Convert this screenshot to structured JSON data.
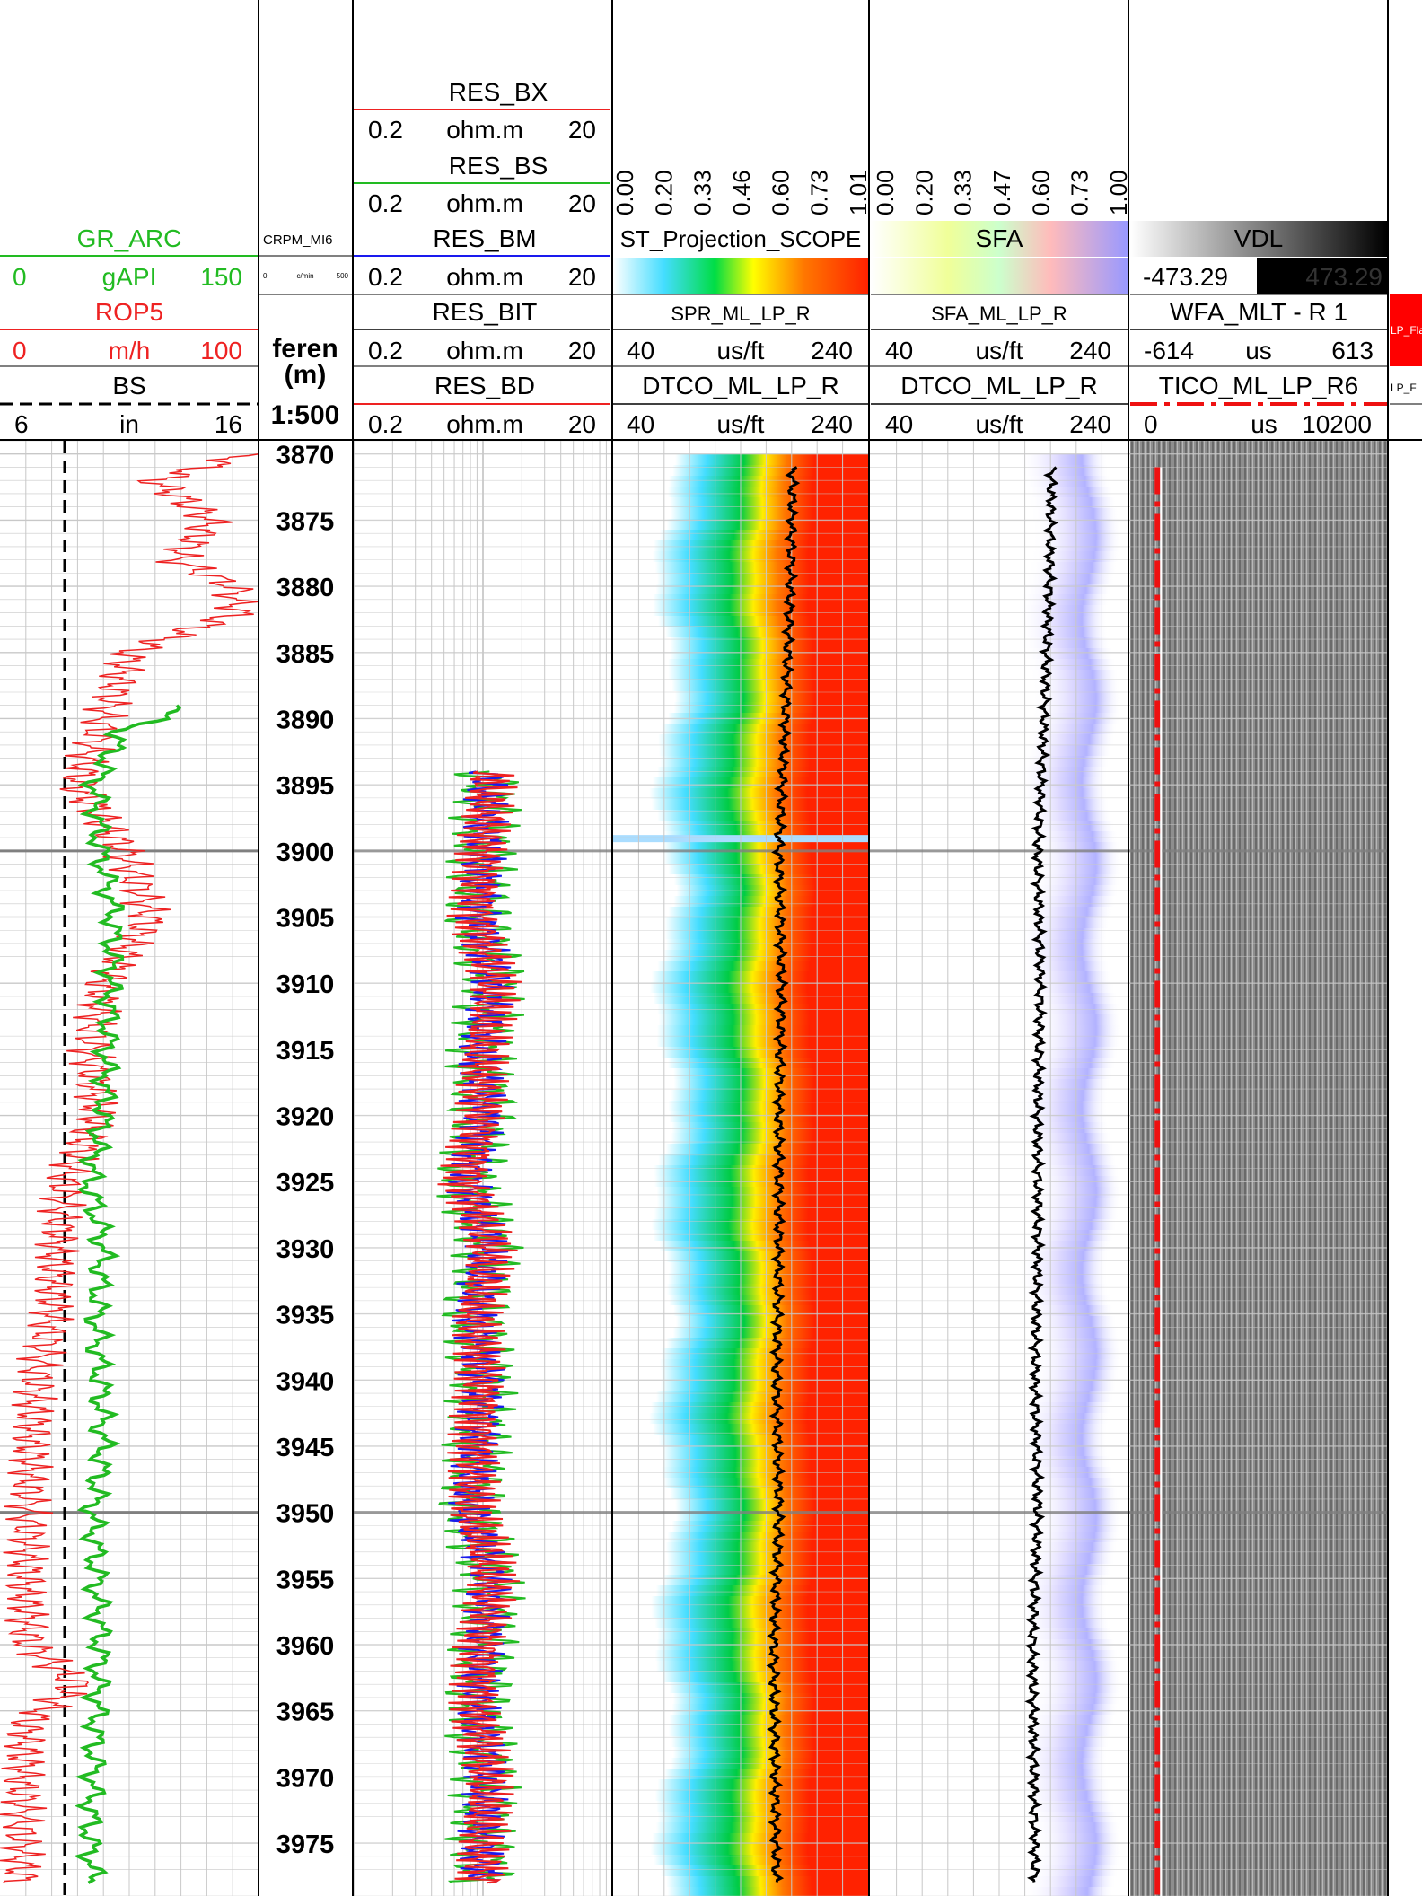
{
  "colors": {
    "gr": "#22bb22",
    "rop": "#ee2222",
    "bs": "#000000",
    "res_bx": "#ee2222",
    "res_bs": "#22bb22",
    "res_bm": "#1a1aee",
    "res_bit": "#000000",
    "res_bd": "#ee2222",
    "dtco": "#000000",
    "tico": "#ee1111",
    "grid": "#c8c8c8",
    "major_grid": "#808080"
  },
  "tracks": {
    "gr": {
      "name": "GR_ARC",
      "min": "0",
      "unit": "gAPI",
      "max": "150",
      "rop_name": "ROP5",
      "rop_min": "0",
      "rop_unit": "m/h",
      "rop_max": "100",
      "bs_name": "BS",
      "bs_min": "6",
      "bs_unit": "in",
      "bs_max": "16"
    },
    "depth": {
      "crpm_name": "CRPM_MI6",
      "crpm_min": "0",
      "crpm_unit": "c/min",
      "crpm_max": "500",
      "ref_label": "feren",
      "unit_label": "(m)",
      "scale_label": "1:500"
    },
    "res": {
      "bx_name": "RES_BX",
      "bx_min": "0.2",
      "bx_unit": "ohm.m",
      "bx_max": "20",
      "bs_name": "RES_BS",
      "bs_min": "0.2",
      "bs_unit": "ohm.m",
      "bs_max": "20",
      "bm_name": "RES_BM",
      "bm_min": "0.2",
      "bm_unit": "ohm.m",
      "bm_max": "20",
      "bit_name": "RES_BIT",
      "bit_min": "0.2",
      "bit_unit": "ohm.m",
      "bit_max": "20",
      "bd_name": "RES_BD",
      "bd_min": "0.2",
      "bd_unit": "ohm.m",
      "bd_max": "20"
    },
    "spr": {
      "scale_ticks": [
        "0.00",
        "0.20",
        "0.33",
        "0.46",
        "0.60",
        "0.73",
        "1.01"
      ],
      "name": "ST_Projection_SCOPE",
      "image_name": "SPR_ML_LP_R",
      "curve_min": "40",
      "curve_unit": "us/ft",
      "curve_max": "240",
      "curve_name": "DTCO_ML_LP_R",
      "curve2_min": "40",
      "curve2_unit": "us/ft",
      "curve2_max": "240"
    },
    "sfa": {
      "scale_ticks": [
        "0.00",
        "0.20",
        "0.33",
        "0.47",
        "0.60",
        "0.73",
        "1.00"
      ],
      "name": "SFA",
      "image_name": "SFA_ML_LP_R",
      "curve_min": "40",
      "curve_unit": "us/ft",
      "curve_max": "240",
      "curve_name": "DTCO_ML_LP_R",
      "curve2_min": "40",
      "curve2_unit": "us/ft",
      "curve2_max": "240"
    },
    "vdl": {
      "name": "VDL",
      "amp_min": "-473.29",
      "amp_max": "473.29",
      "wfa_name": "WFA_MLT - R 1",
      "time_min": "-614",
      "time_unit": "us",
      "time_max": "613",
      "tico_name": "TICO_ML_LP_R6",
      "tico_min": "0",
      "tico_unit": "us",
      "tico_max": "10200"
    },
    "flag": {
      "name1": "LP_Fla",
      "name2": "LP_F"
    }
  },
  "chart_data": {
    "type": "line",
    "title": "",
    "xlabel": "",
    "ylabel": "(m)",
    "depth_range": [
      3869,
      3979
    ],
    "depth_ticks": [
      3870,
      3875,
      3880,
      3885,
      3890,
      3895,
      3900,
      3905,
      3910,
      3915,
      3920,
      3925,
      3930,
      3935,
      3940,
      3945,
      3950,
      3955,
      3960,
      3965,
      3970,
      3975
    ],
    "series": [
      {
        "name": "GR_ARC",
        "unit": "gAPI",
        "range": [
          0,
          150
        ],
        "start_depth": 3889,
        "depth": [
          3889,
          3891,
          3895,
          3900,
          3905,
          3910,
          3915,
          3920,
          3925,
          3930,
          3935,
          3940,
          3945,
          3950,
          3955,
          3960,
          3965,
          3970,
          3975,
          3978
        ],
        "values": [
          110,
          70,
          55,
          58,
          66,
          64,
          62,
          60,
          52,
          60,
          56,
          58,
          60,
          54,
          56,
          58,
          56,
          54,
          52,
          54
        ]
      },
      {
        "name": "ROP5",
        "unit": "m/h",
        "range": [
          0,
          100
        ],
        "depth": [
          3870,
          3872,
          3875,
          3878,
          3880,
          3882,
          3885,
          3890,
          3895,
          3900,
          3905,
          3910,
          3915,
          3920,
          3925,
          3930,
          3935,
          3940,
          3945,
          3950,
          3955,
          3960,
          3963,
          3966,
          3970,
          3978
        ],
        "values": [
          97,
          60,
          82,
          68,
          90,
          92,
          50,
          40,
          30,
          48,
          58,
          40,
          35,
          38,
          25,
          22,
          20,
          14,
          12,
          11,
          10,
          11,
          30,
          10,
          9,
          8
        ]
      },
      {
        "name": "BS",
        "unit": "in",
        "range": [
          6,
          16
        ],
        "depth": [
          3869,
          3979
        ],
        "values": [
          8.5,
          8.5
        ]
      },
      {
        "name": "RES_BD",
        "unit": "ohm.m",
        "range": [
          0.2,
          20
        ],
        "start_depth": 3894,
        "depth": [
          3894,
          3900,
          3905,
          3910,
          3915,
          3920,
          3925,
          3930,
          3935,
          3940,
          3945,
          3950,
          3955,
          3960,
          3965,
          3970,
          3975,
          3978
        ],
        "values": [
          2.2,
          2.0,
          1.8,
          2.4,
          1.9,
          2.0,
          1.5,
          2.2,
          1.7,
          2.0,
          1.8,
          1.6,
          2.3,
          2.0,
          1.8,
          2.1,
          1.9,
          2.0
        ]
      },
      {
        "name": "DTCO_ML_LP_R",
        "unit": "us/ft",
        "range": [
          40,
          240
        ],
        "start_depth": 3871,
        "depth": [
          3871,
          3880,
          3890,
          3900,
          3910,
          3920,
          3930,
          3940,
          3950,
          3960,
          3970,
          3978
        ],
        "values": [
          181,
          179,
          175,
          170,
          172,
          170,
          170,
          168,
          170,
          166,
          167,
          168
        ]
      },
      {
        "name": "TICO_ML_LP_R6",
        "unit": "us",
        "range": [
          0,
          10200
        ],
        "depth": [
          3871,
          3978
        ],
        "values": [
          1080,
          1080
        ]
      }
    ]
  }
}
